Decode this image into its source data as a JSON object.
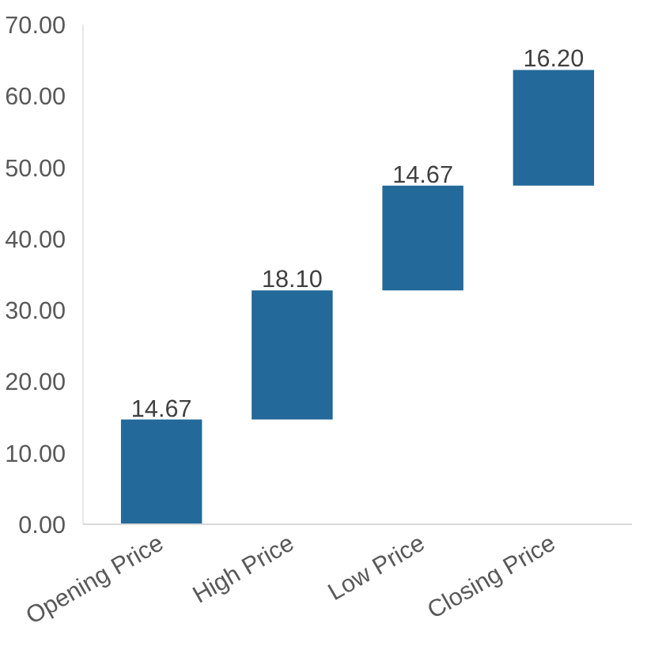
{
  "chart_data": {
    "type": "bar",
    "categories": [
      "Opening Price",
      "High Price",
      "Low Price",
      "Closing Price"
    ],
    "values": [
      14.67,
      18.1,
      14.67,
      16.2
    ],
    "base": [
      0,
      14.67,
      32.77,
      47.44
    ],
    "color": "#23699a",
    "ylim": [
      0,
      70
    ],
    "yticks": [
      {
        "value": 0,
        "label": "0.00"
      },
      {
        "value": 10,
        "label": "10.00"
      },
      {
        "value": 20,
        "label": "20.00"
      },
      {
        "value": 30,
        "label": "30.00"
      },
      {
        "value": 40,
        "label": "40.00"
      },
      {
        "value": 50,
        "label": "50.00"
      },
      {
        "value": 60,
        "label": "60.00"
      },
      {
        "value": 70,
        "label": "70.00"
      }
    ],
    "value_labels": [
      "14.67",
      "18.10",
      "14.67",
      "16.20"
    ],
    "grid": false
  }
}
